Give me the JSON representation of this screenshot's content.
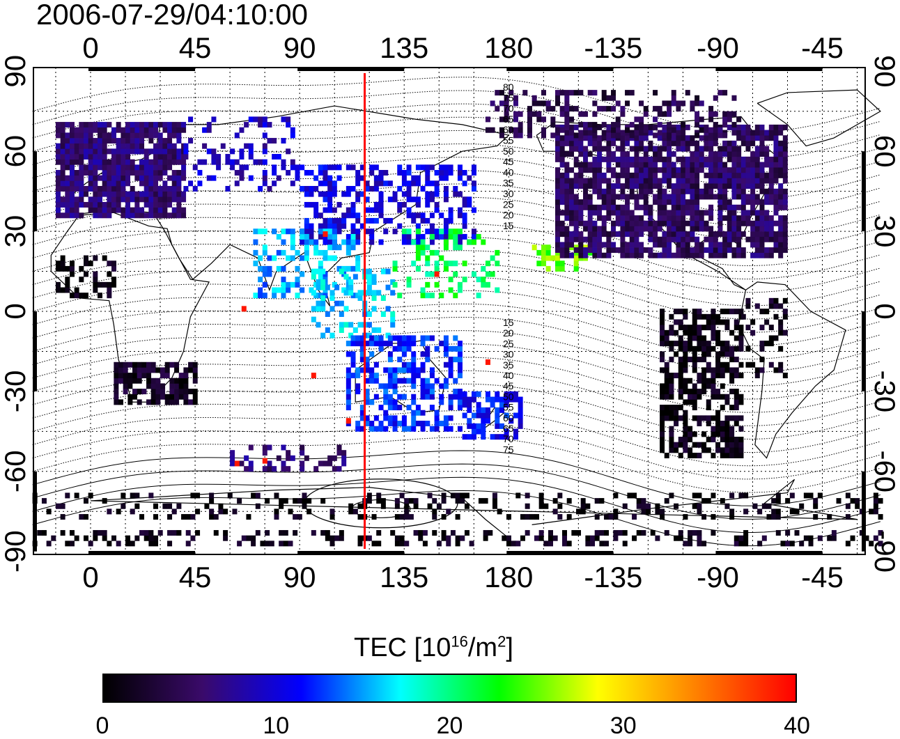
{
  "timestamp": "2006-07-29/04:10:00",
  "map": {
    "lon_ticks": [
      "0",
      "45",
      "90",
      "135",
      "180",
      "-135",
      "-90",
      "-45"
    ],
    "lat_ticks": [
      "90",
      "60",
      "30",
      "0",
      "-30",
      "-60",
      "-90"
    ],
    "mlat_labels_upper": [
      "80",
      "75",
      "70",
      "65",
      "60",
      "55",
      "50",
      "45",
      "40",
      "35",
      "30",
      "25",
      "20",
      "15"
    ],
    "mlat_labels_lower": [
      "15",
      "20",
      "25",
      "30",
      "35",
      "40",
      "45",
      "50",
      "55",
      "60",
      "65",
      "70",
      "75"
    ],
    "meridian_line_color": "#ff0000",
    "meridian_longitude": 118
  },
  "colorbar": {
    "title_prefix": "TEC  [10",
    "title_exp1": "16",
    "title_mid": "/m",
    "title_exp2": "2",
    "title_suffix": "]",
    "ticks": [
      "0",
      "10",
      "20",
      "30",
      "40"
    ],
    "stops": [
      "#000000",
      "#3a0a6a",
      "#0000ff",
      "#00ffff",
      "#00ff00",
      "#ffff00",
      "#ff8000",
      "#ff0000"
    ]
  }
}
